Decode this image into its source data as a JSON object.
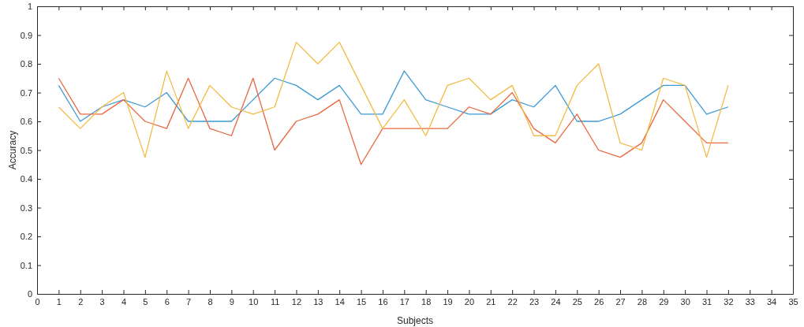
{
  "chart_data": {
    "type": "line",
    "xlabel": "Subjects",
    "ylabel": "Accuracy",
    "x": [
      1,
      2,
      3,
      4,
      5,
      6,
      7,
      8,
      9,
      10,
      11,
      12,
      13,
      14,
      15,
      16,
      17,
      18,
      19,
      20,
      21,
      22,
      23,
      24,
      25,
      26,
      27,
      28,
      29,
      30,
      31,
      32
    ],
    "series": [
      {
        "color": "#3d9ad6",
        "values": [
          0.725,
          0.6,
          0.65,
          0.675,
          0.65,
          0.7,
          0.6,
          0.6,
          0.6,
          0.675,
          0.75,
          0.725,
          0.675,
          0.725,
          0.625,
          0.625,
          0.775,
          0.675,
          0.65,
          0.625,
          0.625,
          0.675,
          0.65,
          0.725,
          0.6,
          0.6,
          0.625,
          0.675,
          0.725,
          0.725,
          0.625,
          0.65
        ]
      },
      {
        "color": "#e9683f",
        "values": [
          0.75,
          0.625,
          0.625,
          0.675,
          0.6,
          0.575,
          0.75,
          0.575,
          0.55,
          0.75,
          0.5,
          0.6,
          0.625,
          0.675,
          0.45,
          0.575,
          0.575,
          0.575,
          0.575,
          0.65,
          0.625,
          0.7,
          0.575,
          0.525,
          0.625,
          0.5,
          0.475,
          0.525,
          0.675,
          0.6,
          0.525,
          0.525
        ]
      },
      {
        "color": "#f3bb45",
        "values": [
          0.65,
          0.575,
          0.65,
          0.7,
          0.475,
          0.775,
          0.575,
          0.725,
          0.65,
          0.625,
          0.65,
          0.875,
          0.8,
          0.875,
          0.725,
          0.575,
          0.675,
          0.55,
          0.725,
          0.75,
          0.675,
          0.725,
          0.55,
          0.55,
          0.725,
          0.8,
          0.525,
          0.5,
          0.75,
          0.725,
          0.475,
          0.725
        ]
      }
    ],
    "xlim": [
      0,
      35
    ],
    "xticks": [
      0,
      1,
      2,
      3,
      4,
      5,
      6,
      7,
      8,
      9,
      10,
      11,
      12,
      13,
      14,
      15,
      16,
      17,
      18,
      19,
      20,
      21,
      22,
      23,
      24,
      25,
      26,
      27,
      28,
      29,
      30,
      31,
      32,
      33,
      34,
      35
    ],
    "ylim": [
      0,
      1
    ],
    "yticks": [
      0,
      0.1,
      0.2,
      0.3,
      0.4,
      0.5,
      0.6,
      0.7,
      0.8,
      0.9,
      1
    ],
    "grid": false,
    "marker": "none",
    "line_style": "solid"
  }
}
